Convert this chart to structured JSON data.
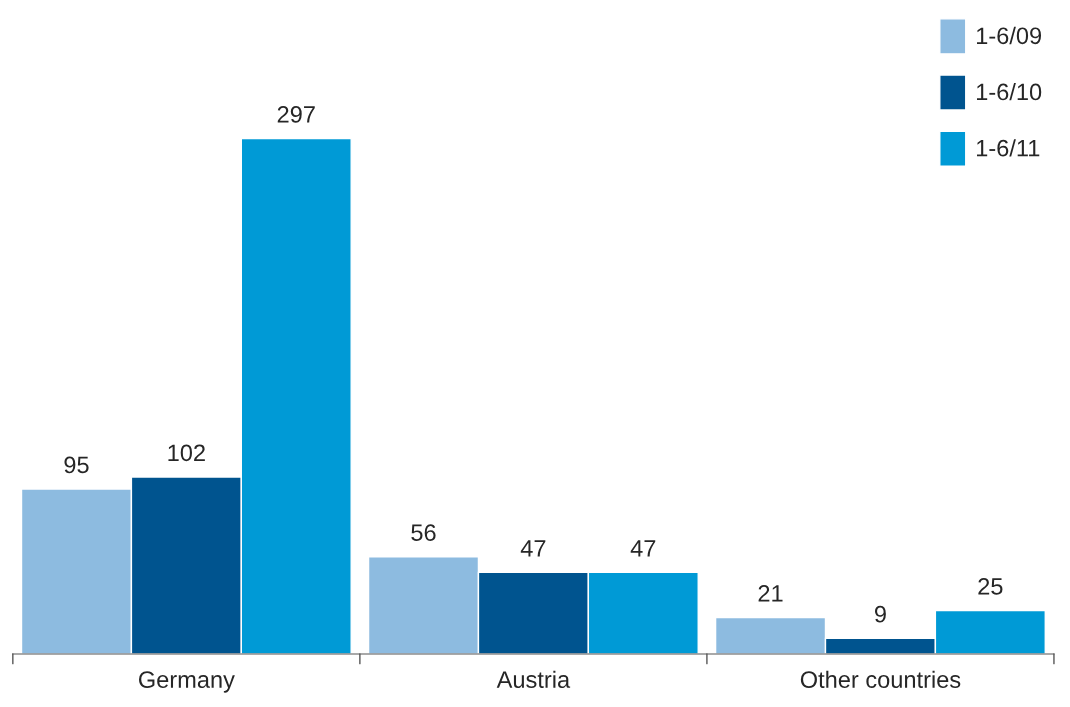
{
  "chart_data": {
    "type": "bar",
    "categories": [
      "Germany",
      "Austria",
      "Other countries"
    ],
    "series": [
      {
        "name": "1-6/09",
        "color": "#8dbbe0",
        "values": [
          95,
          56,
          21
        ]
      },
      {
        "name": "1-6/10",
        "color": "#00548f",
        "values": [
          102,
          47,
          9
        ]
      },
      {
        "name": "1-6/11",
        "color": "#009ad6",
        "values": [
          297,
          47,
          25
        ]
      }
    ],
    "data_labels": true,
    "legend": "top right",
    "grid": false
  }
}
